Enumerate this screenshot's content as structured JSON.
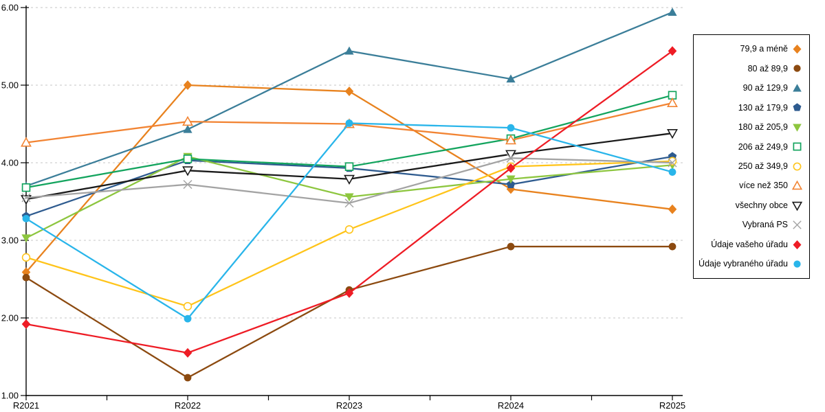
{
  "chart_data": {
    "type": "line",
    "title": "",
    "xlabel": "",
    "ylabel": "",
    "categories": [
      "R2021",
      "R2022",
      "R2023",
      "R2024",
      "R2025"
    ],
    "y_ticks": [
      "1.00",
      "2.00",
      "3.00",
      "4.00",
      "5.00",
      "6.00"
    ],
    "ylim": [
      1.0,
      6.0
    ],
    "grid": "horizontal-dashed",
    "legend_position": "right-box",
    "layout": {
      "background": "#FFFFFF",
      "axis_color": "#000000",
      "grid_color": "#C6C6C6",
      "legend_border_color": "#000000"
    },
    "series": [
      {
        "name": "79,9 a méně",
        "marker": "diamond",
        "filled": true,
        "color": "#E8821E",
        "values": [
          2.59,
          5.0,
          4.92,
          3.66,
          3.4
        ]
      },
      {
        "name": "80 až 89,9",
        "marker": "circle",
        "filled": true,
        "color": "#8C4A10",
        "values": [
          2.52,
          1.23,
          2.36,
          2.92,
          2.92
        ]
      },
      {
        "name": "90 až 129,9",
        "marker": "triangle-up",
        "filled": true,
        "color": "#3B7E99",
        "values": [
          3.7,
          4.43,
          5.44,
          5.08,
          5.94
        ]
      },
      {
        "name": "130 až 179,9",
        "marker": "pentagon",
        "filled": true,
        "color": "#2E5B8F",
        "values": [
          3.31,
          4.03,
          3.93,
          3.72,
          4.08
        ]
      },
      {
        "name": "180 až 205,9",
        "marker": "triangle-down",
        "filled": true,
        "color": "#8DC63F",
        "values": [
          3.03,
          4.08,
          3.56,
          3.79,
          3.97
        ]
      },
      {
        "name": "206 až 249,9",
        "marker": "square",
        "filled": false,
        "color": "#13A45E",
        "values": [
          3.68,
          4.05,
          3.95,
          4.31,
          4.87
        ]
      },
      {
        "name": "250 až 349,9",
        "marker": "circle",
        "filled": false,
        "color": "#FFC41A",
        "values": [
          2.78,
          2.15,
          3.14,
          3.95,
          4.02
        ]
      },
      {
        "name": "více než 350",
        "marker": "triangle-up",
        "filled": false,
        "color": "#F28433",
        "values": [
          4.26,
          4.53,
          4.5,
          4.29,
          4.77
        ]
      },
      {
        "name": "všechny obce",
        "marker": "triangle-down",
        "filled": false,
        "color": "#1A1A1A",
        "values": [
          3.53,
          3.9,
          3.79,
          4.11,
          4.38
        ]
      },
      {
        "name": "Vybraná PS",
        "marker": "x",
        "filled": false,
        "color": "#A3A3A3",
        "values": [
          3.55,
          3.72,
          3.48,
          4.06,
          4.0
        ]
      },
      {
        "name": "Údaje vašeho úřadu",
        "marker": "diamond",
        "filled": true,
        "color": "#EE1C25",
        "values": [
          1.92,
          1.55,
          2.32,
          3.93,
          5.44
        ]
      },
      {
        "name": "Údaje vybraného úřadu",
        "marker": "circle",
        "filled": true,
        "color": "#29B5EA",
        "values": [
          3.28,
          1.99,
          4.51,
          4.45,
          3.88
        ]
      }
    ]
  }
}
